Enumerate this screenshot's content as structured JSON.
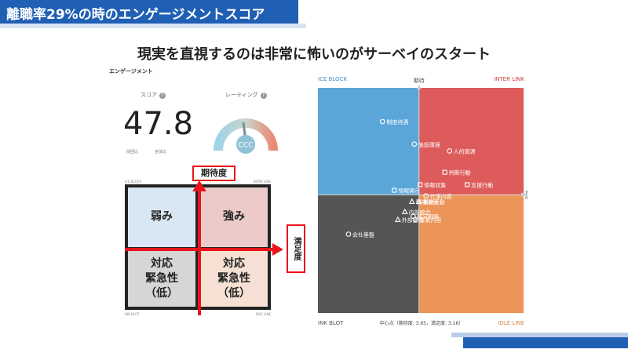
{
  "header": {
    "title": "離職率29%の時のエンゲージメントスコア"
  },
  "subtitle": "現実を直視するのは非常に怖いのがサーベイのスタート",
  "left_panel": {
    "title": "エンゲージメント",
    "score_label": "スコア",
    "rating_label": "レーティング",
    "score_value": "47.8",
    "sub_label_1": "前回比",
    "sub_label_2": "全体比",
    "rating_value": "CCC",
    "help_glyph": "?",
    "quad_corners": {
      "tl": "ICE BLOCK",
      "tr": "INTER LINK",
      "bl": "INK BLOT",
      "br": "IDLE LINE"
    },
    "quadrants": {
      "tl": [
        "弱み"
      ],
      "tr": [
        "強み"
      ],
      "bl": [
        "対応",
        "緊急性",
        "（低）"
      ],
      "br": [
        "対応",
        "緊急性",
        "（低）"
      ]
    },
    "axis_box_top": "期待度",
    "axis_box_right": "満足度"
  },
  "colors": {
    "brand": "#1f5fb4",
    "accent_red": "#e8131b",
    "ice_block": "#5aa6d8",
    "inter_link": "#de5b5b",
    "ink_blot": "#555555",
    "idle_line": "#ec9559"
  },
  "chart_data": {
    "type": "scatter",
    "quadrant_labels": {
      "top_left": "ICE BLOCK",
      "top_right": "INTER LINK",
      "bottom_left": "INK BLOT",
      "bottom_right": "IDLE LINE"
    },
    "y_axis_label": "期待",
    "x_axis_label": "満足",
    "center_note": "中心点（期待度: 3.65，満足度: 3.16）",
    "center": {
      "x": 3.16,
      "y": 3.65
    },
    "points": [
      {
        "label": "制度待遇",
        "shape": "circle",
        "x": 2.85,
        "y": 4.3
      },
      {
        "label": "施設環境",
        "shape": "circle",
        "x": 3.12,
        "y": 4.1
      },
      {
        "label": "人的資源",
        "shape": "circle",
        "x": 3.42,
        "y": 4.04
      },
      {
        "label": "判断行動",
        "shape": "square",
        "x": 3.38,
        "y": 3.85
      },
      {
        "label": "情報収集",
        "shape": "square",
        "x": 3.17,
        "y": 3.74
      },
      {
        "label": "支援行動",
        "shape": "square",
        "x": 3.57,
        "y": 3.74
      },
      {
        "label": "情報開示",
        "shape": "square",
        "x": 2.95,
        "y": 3.69
      },
      {
        "label": "仕事内容",
        "shape": "circle",
        "x": 3.22,
        "y": 3.64
      },
      {
        "label": "職場環境",
        "shape": "triangle",
        "x": 3.1,
        "y": 3.59
      },
      {
        "label": "業務活動",
        "shape": "triangle",
        "x": 3.16,
        "y": 3.59
      },
      {
        "label": "内部統合",
        "shape": "triangle",
        "x": 3.04,
        "y": 3.5
      },
      {
        "label": "経営戦略",
        "shape": "circle",
        "x": 3.11,
        "y": 3.46
      },
      {
        "label": "外部連携",
        "shape": "triangle",
        "x": 2.98,
        "y": 3.43
      },
      {
        "label": "事業内容",
        "shape": "circle",
        "x": 3.13,
        "y": 3.43
      },
      {
        "label": "会社基盤",
        "shape": "circle",
        "x": 2.56,
        "y": 3.3
      }
    ]
  }
}
